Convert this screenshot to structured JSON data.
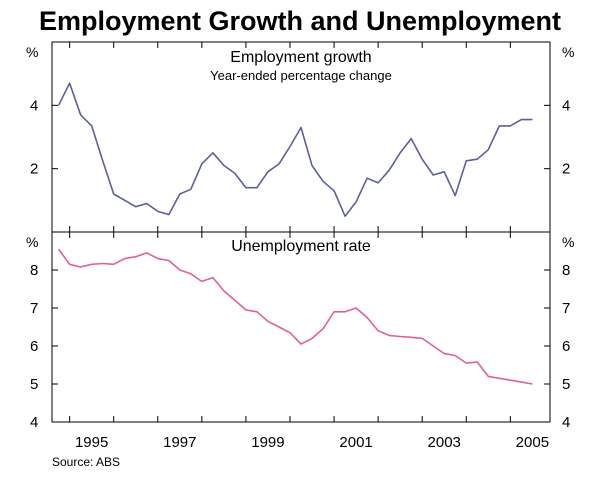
{
  "title": "Employment Growth and Unemployment",
  "source": "Source: ABS",
  "colors": {
    "growth": "#5b5f9e",
    "unemployment": "#e0609a",
    "axis": "#000000"
  },
  "chart_data": [
    {
      "type": "line",
      "title": "Employment growth",
      "subtitle": "Year-ended percentage change",
      "ylabel": "%",
      "ylim": [
        0,
        6
      ],
      "yticks": [
        2,
        4
      ],
      "xlim": [
        1994.6,
        2005.9
      ],
      "grid": false,
      "series": [
        {
          "name": "Employment growth",
          "x": [
            1994.75,
            1995.0,
            1995.25,
            1995.5,
            1995.75,
            1996.0,
            1996.25,
            1996.5,
            1996.75,
            1997.0,
            1997.25,
            1997.5,
            1997.75,
            1998.0,
            1998.25,
            1998.5,
            1998.75,
            1999.0,
            1999.25,
            1999.5,
            1999.75,
            2000.0,
            2000.25,
            2000.5,
            2000.75,
            2001.0,
            2001.25,
            2001.5,
            2001.75,
            2002.0,
            2002.25,
            2002.5,
            2002.75,
            2003.0,
            2003.25,
            2003.5,
            2003.75,
            2004.0,
            2004.25,
            2004.5,
            2004.75,
            2005.0,
            2005.25,
            2005.5
          ],
          "values": [
            4.0,
            4.7,
            3.7,
            3.35,
            2.25,
            1.2,
            1.0,
            0.8,
            0.9,
            0.65,
            0.55,
            1.2,
            1.35,
            2.15,
            2.5,
            2.1,
            1.85,
            1.4,
            1.4,
            1.9,
            2.15,
            2.7,
            3.3,
            2.1,
            1.6,
            1.3,
            0.5,
            0.95,
            1.7,
            1.55,
            1.95,
            2.5,
            2.95,
            2.3,
            1.8,
            1.9,
            1.15,
            2.25,
            2.3,
            2.6,
            3.35,
            3.35,
            3.55,
            3.55
          ]
        }
      ]
    },
    {
      "type": "line",
      "title": "Unemployment rate",
      "xlabel": "",
      "ylabel": "%",
      "ylim": [
        4,
        9
      ],
      "yticks": [
        4,
        5,
        6,
        7,
        8
      ],
      "xlim": [
        1994.6,
        2005.9
      ],
      "xticks": [
        1995,
        1997,
        1999,
        2001,
        2003,
        2005
      ],
      "xtick_labels": [
        "1995",
        "1997",
        "1999",
        "2001",
        "2003",
        "2005"
      ],
      "grid": false,
      "series": [
        {
          "name": "Unemployment rate",
          "x": [
            1994.75,
            1995.0,
            1995.25,
            1995.5,
            1995.75,
            1996.0,
            1996.25,
            1996.5,
            1996.75,
            1997.0,
            1997.25,
            1997.5,
            1997.75,
            1998.0,
            1998.25,
            1998.5,
            1998.75,
            1999.0,
            1999.25,
            1999.5,
            1999.75,
            2000.0,
            2000.25,
            2000.5,
            2000.75,
            2001.0,
            2001.25,
            2001.5,
            2001.75,
            2002.0,
            2002.25,
            2002.5,
            2002.75,
            2003.0,
            2003.25,
            2003.5,
            2003.75,
            2004.0,
            2004.25,
            2004.5,
            2004.75,
            2005.0,
            2005.25,
            2005.5
          ],
          "values": [
            8.55,
            8.15,
            8.08,
            8.15,
            8.17,
            8.15,
            8.3,
            8.35,
            8.45,
            8.3,
            8.25,
            8.0,
            7.9,
            7.7,
            7.8,
            7.45,
            7.2,
            6.95,
            6.9,
            6.65,
            6.5,
            6.35,
            6.05,
            6.2,
            6.45,
            6.9,
            6.9,
            7.0,
            6.75,
            6.4,
            6.28,
            6.25,
            6.23,
            6.2,
            6.0,
            5.8,
            5.75,
            5.55,
            5.58,
            5.2,
            5.15,
            5.1,
            5.05,
            5.0
          ]
        }
      ]
    }
  ]
}
